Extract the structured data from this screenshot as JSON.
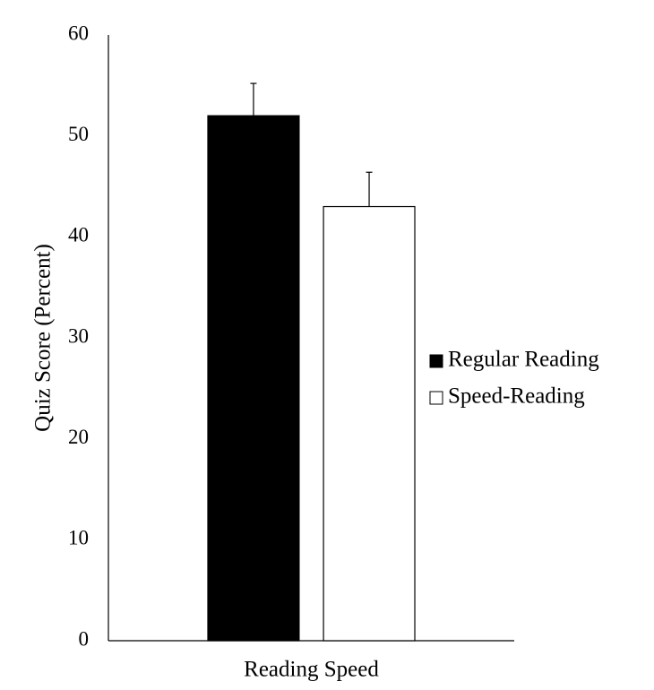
{
  "chart_data": {
    "type": "bar",
    "y_label": "Quiz Score (Percent)",
    "categories": [
      "Reading Speed"
    ],
    "series": [
      {
        "name": "Regular Reading",
        "color": "#000000",
        "values": [
          52
        ],
        "errors": [
          3.2
        ]
      },
      {
        "name": "Speed-Reading",
        "color": "#ffffff",
        "values": [
          43
        ],
        "errors": [
          3.4
        ]
      }
    ],
    "ylim": [
      0,
      60
    ],
    "yticks": [
      0,
      10,
      20,
      30,
      40,
      50,
      60
    ],
    "grid": false,
    "legend": "right"
  }
}
